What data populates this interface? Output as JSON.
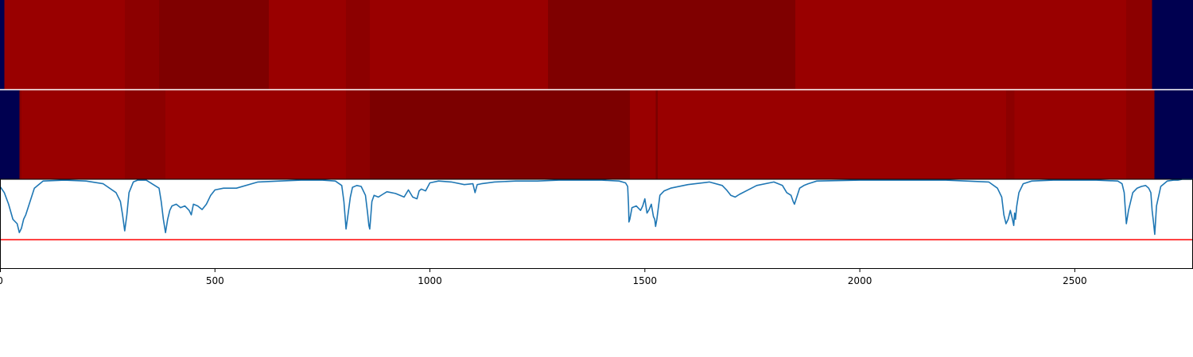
{
  "chart_data": [
    {
      "type": "heatmap",
      "name": "segmentation-track-1",
      "segments": [
        {
          "start": 0,
          "end": 10,
          "color": "#000050"
        },
        {
          "start": 10,
          "end": 290,
          "color": "#990000"
        },
        {
          "start": 290,
          "end": 370,
          "color": "#8c0000"
        },
        {
          "start": 370,
          "end": 625,
          "color": "#7f0000"
        },
        {
          "start": 625,
          "end": 805,
          "color": "#990000"
        },
        {
          "start": 805,
          "end": 860,
          "color": "#8c0000"
        },
        {
          "start": 860,
          "end": 1275,
          "color": "#990000"
        },
        {
          "start": 1275,
          "end": 1850,
          "color": "#7f0000"
        },
        {
          "start": 1850,
          "end": 2620,
          "color": "#990000"
        },
        {
          "start": 2620,
          "end": 2680,
          "color": "#8c0000"
        },
        {
          "start": 2680,
          "end": 2775,
          "color": "#000050"
        }
      ]
    },
    {
      "type": "heatmap",
      "name": "segmentation-track-2",
      "segments": [
        {
          "start": 0,
          "end": 45,
          "color": "#000050"
        },
        {
          "start": 45,
          "end": 50,
          "color": "#8c0000"
        },
        {
          "start": 50,
          "end": 290,
          "color": "#990000"
        },
        {
          "start": 290,
          "end": 385,
          "color": "#8c0000"
        },
        {
          "start": 385,
          "end": 805,
          "color": "#990000"
        },
        {
          "start": 805,
          "end": 860,
          "color": "#8c0000"
        },
        {
          "start": 860,
          "end": 1465,
          "color": "#7c0000"
        },
        {
          "start": 1465,
          "end": 1525,
          "color": "#990000"
        },
        {
          "start": 1525,
          "end": 1530,
          "color": "#7c0000"
        },
        {
          "start": 1530,
          "end": 2340,
          "color": "#990000"
        },
        {
          "start": 2340,
          "end": 2360,
          "color": "#8c0000"
        },
        {
          "start": 2360,
          "end": 2620,
          "color": "#990000"
        },
        {
          "start": 2620,
          "end": 2685,
          "color": "#8c0000"
        },
        {
          "start": 2685,
          "end": 2775,
          "color": "#000050"
        }
      ]
    },
    {
      "type": "line",
      "name": "signal-track",
      "xlim": [
        0,
        2775
      ],
      "ylim": [
        0,
        1.0
      ],
      "threshold": {
        "value": 0.32,
        "color": "#ff0000"
      },
      "series_color": "#1f77b4",
      "x": [
        0,
        10,
        20,
        30,
        40,
        45,
        50,
        55,
        60,
        70,
        80,
        100,
        150,
        200,
        240,
        270,
        280,
        285,
        290,
        295,
        300,
        310,
        320,
        340,
        370,
        375,
        380,
        385,
        390,
        395,
        400,
        410,
        420,
        430,
        440,
        445,
        450,
        460,
        470,
        480,
        490,
        500,
        520,
        550,
        600,
        650,
        700,
        750,
        780,
        795,
        800,
        805,
        810,
        815,
        820,
        830,
        840,
        850,
        855,
        858,
        860,
        862,
        865,
        870,
        880,
        890,
        900,
        920,
        940,
        950,
        960,
        970,
        975,
        980,
        990,
        1000,
        1020,
        1050,
        1080,
        1100,
        1105,
        1110,
        1120,
        1150,
        1200,
        1250,
        1300,
        1350,
        1400,
        1440,
        1455,
        1460,
        1462,
        1463,
        1465,
        1470,
        1480,
        1490,
        1495,
        1500,
        1505,
        1510,
        1515,
        1520,
        1523,
        1525,
        1528,
        1535,
        1545,
        1560,
        1600,
        1650,
        1680,
        1690,
        1700,
        1710,
        1720,
        1740,
        1760,
        1800,
        1820,
        1830,
        1840,
        1845,
        1848,
        1852,
        1860,
        1870,
        1880,
        1900,
        2000,
        2100,
        2200,
        2300,
        2320,
        2330,
        2335,
        2340,
        2345,
        2350,
        2355,
        2358,
        2360,
        2362,
        2365,
        2370,
        2380,
        2400,
        2450,
        2500,
        2550,
        2600,
        2610,
        2615,
        2617,
        2620,
        2625,
        2635,
        2645,
        2655,
        2665,
        2672,
        2677,
        2680,
        2683,
        2686,
        2690,
        2700,
        2715,
        2730,
        2740,
        2750,
        2775
      ],
      "y": [
        0.92,
        0.85,
        0.72,
        0.55,
        0.5,
        0.4,
        0.45,
        0.55,
        0.6,
        0.75,
        0.9,
        0.98,
        0.99,
        0.98,
        0.95,
        0.85,
        0.75,
        0.6,
        0.42,
        0.6,
        0.85,
        0.97,
        0.99,
        0.99,
        0.9,
        0.75,
        0.55,
        0.4,
        0.55,
        0.65,
        0.7,
        0.72,
        0.68,
        0.7,
        0.65,
        0.6,
        0.72,
        0.7,
        0.66,
        0.72,
        0.82,
        0.88,
        0.9,
        0.9,
        0.97,
        0.98,
        0.99,
        0.99,
        0.98,
        0.93,
        0.75,
        0.44,
        0.62,
        0.8,
        0.91,
        0.93,
        0.92,
        0.82,
        0.62,
        0.48,
        0.44,
        0.55,
        0.75,
        0.82,
        0.8,
        0.83,
        0.86,
        0.84,
        0.8,
        0.88,
        0.8,
        0.78,
        0.87,
        0.89,
        0.87,
        0.96,
        0.98,
        0.97,
        0.94,
        0.95,
        0.85,
        0.94,
        0.95,
        0.97,
        0.98,
        0.98,
        0.99,
        0.99,
        0.99,
        0.98,
        0.96,
        0.92,
        0.7,
        0.52,
        0.55,
        0.68,
        0.7,
        0.65,
        0.7,
        0.78,
        0.62,
        0.66,
        0.72,
        0.58,
        0.55,
        0.47,
        0.55,
        0.82,
        0.87,
        0.9,
        0.94,
        0.97,
        0.93,
        0.88,
        0.82,
        0.8,
        0.83,
        0.88,
        0.93,
        0.97,
        0.93,
        0.85,
        0.82,
        0.75,
        0.72,
        0.78,
        0.9,
        0.93,
        0.95,
        0.98,
        0.99,
        0.99,
        0.99,
        0.97,
        0.9,
        0.8,
        0.6,
        0.5,
        0.55,
        0.65,
        0.55,
        0.48,
        0.62,
        0.55,
        0.7,
        0.85,
        0.95,
        0.98,
        0.99,
        0.99,
        0.99,
        0.98,
        0.95,
        0.85,
        0.7,
        0.5,
        0.65,
        0.85,
        0.9,
        0.92,
        0.93,
        0.9,
        0.85,
        0.65,
        0.52,
        0.38,
        0.7,
        0.92,
        0.98,
        0.99,
        0.99,
        1.0,
        1.0
      ],
      "xticks": [
        0,
        500,
        1000,
        1500,
        2000,
        2500
      ],
      "xtick_labels": [
        "0",
        "500",
        "1000",
        "1500",
        "2000",
        "2500"
      ]
    }
  ]
}
